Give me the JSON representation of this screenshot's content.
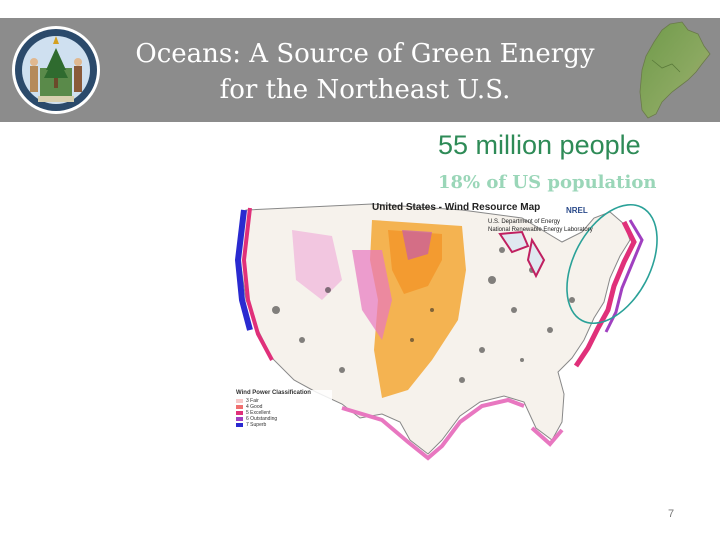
{
  "slide": {
    "title_line1": "Oceans: A Source of Green Energy",
    "title_line2": "for the Northeast U.S.",
    "stat_people": "55 million people",
    "stat_percent": "18% of US population",
    "page_number": "7"
  },
  "map": {
    "title": "United States - Wind Resource Map",
    "org_line1": "U.S. Department of Energy",
    "org_line2": "National Renewable Energy Laboratory",
    "logo_text": "NREL",
    "legend_title": "Wind Power Classification",
    "legend_rows": [
      "3 Fair",
      "4 Good",
      "5 Excellent",
      "6 Outstanding",
      "7 Superb"
    ],
    "legend_colors": [
      "#f7c8c8",
      "#f07070",
      "#e0307a",
      "#a040c0",
      "#2a2ad0"
    ]
  },
  "colors": {
    "banner": "#8c8c8c",
    "people_text": "#2e8b57",
    "percent_text": "#9ad6b8",
    "highlight_ellipse": "#2aa198"
  }
}
